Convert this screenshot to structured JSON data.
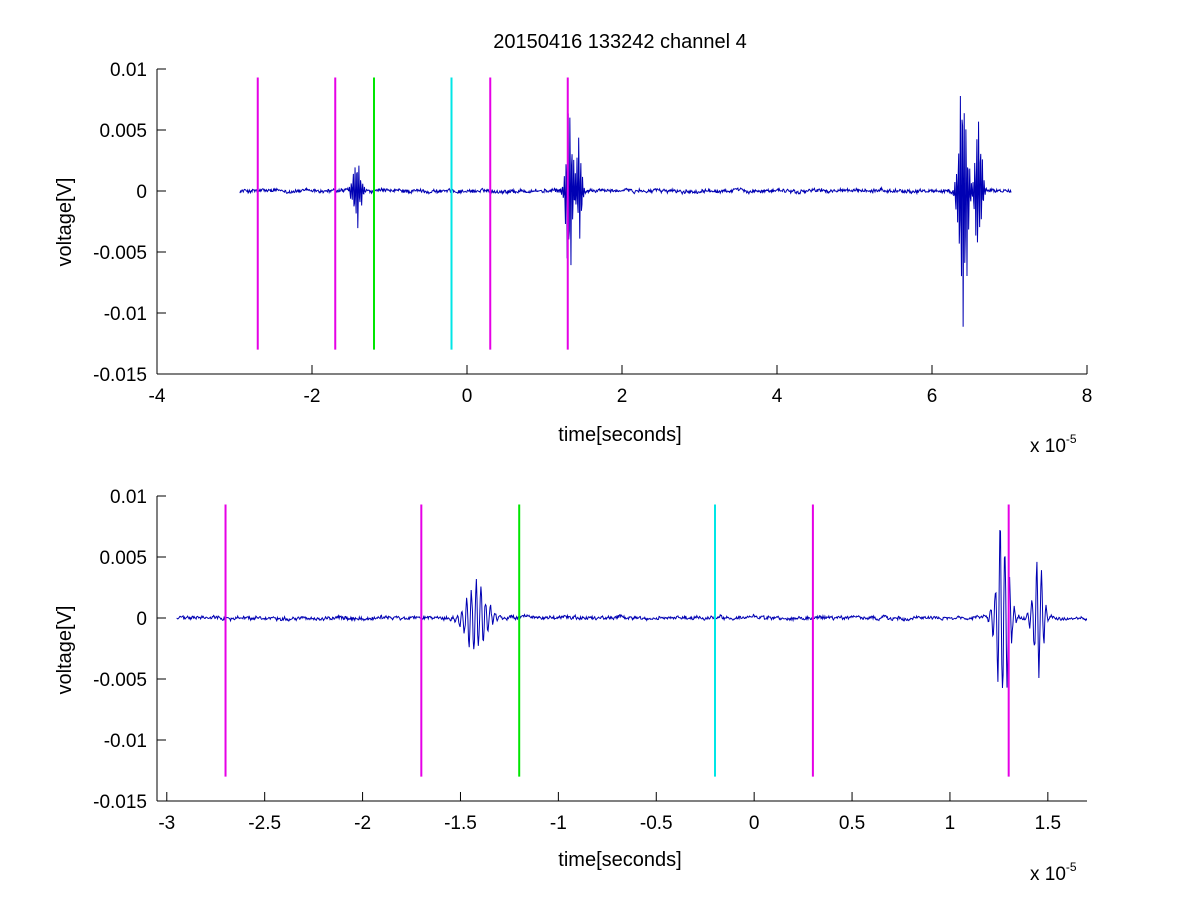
{
  "figure": {
    "title": "20150416 133242 channel 4"
  },
  "chart_data": [
    {
      "type": "line",
      "title": "20150416 133242 channel 4",
      "xlabel": "time[seconds]",
      "ylabel": "voltage[V]",
      "x_multiplier_label": {
        "base": "x 10",
        "exponent": "-5"
      },
      "xlim": [
        -4,
        8
      ],
      "ylim": [
        -0.015,
        0.01
      ],
      "x_ticks": [
        -4,
        -2,
        0,
        2,
        4,
        6,
        8
      ],
      "x_tick_labels": [
        "-4",
        "-2",
        "0",
        "2",
        "4",
        "6",
        "8"
      ],
      "y_ticks": [
        -0.015,
        -0.01,
        -0.005,
        0,
        0.005,
        0.01
      ],
      "y_tick_labels": [
        "-0.015",
        "-0.01",
        "-0.005",
        "0",
        "0.005",
        "0.01"
      ],
      "grid": false,
      "signal_color": "#0000b3",
      "signal": {
        "x_start": -2.93,
        "x_end": 7.02,
        "noise_amplitude": 0.0002,
        "bursts": [
          {
            "center": -1.42,
            "width": 0.1,
            "amplitude": 0.003
          },
          {
            "center": 1.32,
            "width": 0.08,
            "amplitude": 0.008
          },
          {
            "center": 1.45,
            "width": 0.06,
            "amplitude": 0.005
          },
          {
            "center": 6.4,
            "width": 0.1,
            "amplitude": 0.011
          },
          {
            "center": 6.6,
            "width": 0.08,
            "amplitude": 0.006
          }
        ]
      },
      "vertical_markers": [
        {
          "x": -2.7,
          "y_from": -0.013,
          "y_to": 0.0093,
          "color": "#e600e6"
        },
        {
          "x": -1.7,
          "y_from": -0.013,
          "y_to": 0.0093,
          "color": "#e600e6"
        },
        {
          "x": -1.2,
          "y_from": -0.013,
          "y_to": 0.0093,
          "color": "#00e600"
        },
        {
          "x": -0.2,
          "y_from": -0.013,
          "y_to": 0.0093,
          "color": "#00e6e6"
        },
        {
          "x": 0.3,
          "y_from": -0.013,
          "y_to": 0.0093,
          "color": "#e600e6"
        },
        {
          "x": 1.3,
          "y_from": -0.013,
          "y_to": 0.0093,
          "color": "#e600e6"
        }
      ]
    },
    {
      "type": "line",
      "title": "",
      "xlabel": "time[seconds]",
      "ylabel": "voltage[V]",
      "x_multiplier_label": {
        "base": "x 10",
        "exponent": "-5"
      },
      "xlim": [
        -3.05,
        1.7
      ],
      "ylim": [
        -0.015,
        0.01
      ],
      "x_ticks": [
        -3,
        -2.5,
        -2,
        -1.5,
        -1,
        -0.5,
        0,
        0.5,
        1,
        1.5
      ],
      "x_tick_labels": [
        "-3",
        "-2.5",
        "-2",
        "-1.5",
        "-1",
        "-0.5",
        "0",
        "0.5",
        "1",
        "1.5"
      ],
      "y_ticks": [
        -0.015,
        -0.01,
        -0.005,
        0,
        0.005,
        0.01
      ],
      "y_tick_labels": [
        "-0.015",
        "-0.01",
        "-0.005",
        "0",
        "0.005",
        "0.01"
      ],
      "grid": false,
      "signal_color": "#0000b3",
      "signal": {
        "x_start": -2.95,
        "x_end": 1.7,
        "noise_amplitude": 0.0002,
        "bursts": [
          {
            "center": -1.42,
            "width": 0.1,
            "amplitude": 0.003
          },
          {
            "center": 1.27,
            "width": 0.06,
            "amplitude": 0.008
          },
          {
            "center": 1.45,
            "width": 0.05,
            "amplitude": 0.005
          }
        ]
      },
      "vertical_markers": [
        {
          "x": -2.7,
          "y_from": -0.013,
          "y_to": 0.0093,
          "color": "#e600e6"
        },
        {
          "x": -1.7,
          "y_from": -0.013,
          "y_to": 0.0093,
          "color": "#e600e6"
        },
        {
          "x": -1.2,
          "y_from": -0.013,
          "y_to": 0.0093,
          "color": "#00e600"
        },
        {
          "x": -0.2,
          "y_from": -0.013,
          "y_to": 0.0093,
          "color": "#00e6e6"
        },
        {
          "x": 0.3,
          "y_from": -0.013,
          "y_to": 0.0093,
          "color": "#e600e6"
        },
        {
          "x": 1.3,
          "y_from": -0.013,
          "y_to": 0.0093,
          "color": "#e600e6"
        }
      ]
    }
  ]
}
